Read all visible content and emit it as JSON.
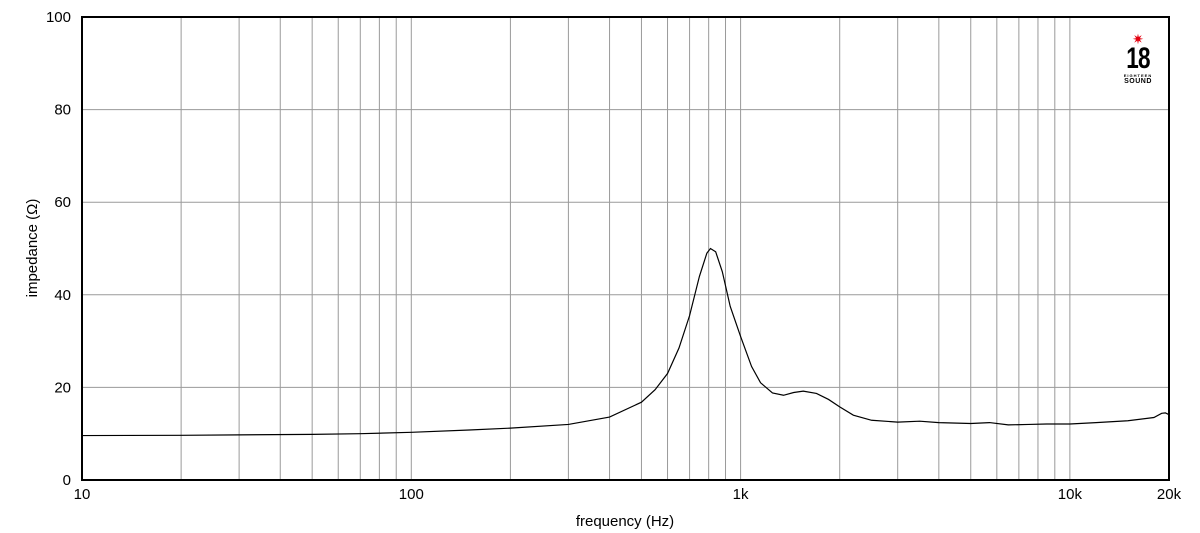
{
  "brand": {
    "star": "✷",
    "number": "18",
    "line1": "EIGHTEEN",
    "line2": "SOUND",
    "star_color": "#e3000f"
  },
  "chart_data": {
    "type": "line",
    "xlabel": "frequency (Hz)",
    "ylabel": "impedance (Ω)",
    "xscale": "log",
    "xlim": [
      10,
      20000
    ],
    "ylim": [
      0,
      100
    ],
    "grid": true,
    "x_tick_labels": [
      {
        "value": 10,
        "label": "10"
      },
      {
        "value": 100,
        "label": "100"
      },
      {
        "value": 1000,
        "label": "1k"
      },
      {
        "value": 10000,
        "label": "10k"
      },
      {
        "value": 20000,
        "label": "20k"
      }
    ],
    "y_ticks": [
      0,
      20,
      40,
      60,
      80,
      100
    ],
    "line_color": "#000000",
    "series": [
      {
        "points": [
          [
            10,
            9.6
          ],
          [
            20,
            9.65
          ],
          [
            30,
            9.75
          ],
          [
            50,
            9.85
          ],
          [
            70,
            10.0
          ],
          [
            100,
            10.3
          ],
          [
            150,
            10.8
          ],
          [
            200,
            11.2
          ],
          [
            300,
            12.0
          ],
          [
            400,
            13.6
          ],
          [
            500,
            16.8
          ],
          [
            550,
            19.5
          ],
          [
            600,
            23.0
          ],
          [
            650,
            28.5
          ],
          [
            700,
            35.5
          ],
          [
            750,
            44.0
          ],
          [
            790,
            49.0
          ],
          [
            810,
            50.0
          ],
          [
            840,
            49.3
          ],
          [
            880,
            45.0
          ],
          [
            930,
            37.5
          ],
          [
            1000,
            31.0
          ],
          [
            1080,
            24.5
          ],
          [
            1150,
            21.0
          ],
          [
            1250,
            18.8
          ],
          [
            1350,
            18.3
          ],
          [
            1450,
            18.9
          ],
          [
            1550,
            19.2
          ],
          [
            1700,
            18.7
          ],
          [
            1850,
            17.4
          ],
          [
            2000,
            15.8
          ],
          [
            2200,
            14.0
          ],
          [
            2500,
            12.9
          ],
          [
            3000,
            12.5
          ],
          [
            3500,
            12.7
          ],
          [
            4000,
            12.4
          ],
          [
            5000,
            12.2
          ],
          [
            5700,
            12.4
          ],
          [
            6500,
            11.9
          ],
          [
            7500,
            12.0
          ],
          [
            8500,
            12.1
          ],
          [
            10000,
            12.1
          ],
          [
            12000,
            12.4
          ],
          [
            15000,
            12.8
          ],
          [
            18000,
            13.5
          ],
          [
            19000,
            14.4
          ],
          [
            19500,
            14.5
          ],
          [
            20000,
            14.1
          ]
        ]
      }
    ]
  }
}
